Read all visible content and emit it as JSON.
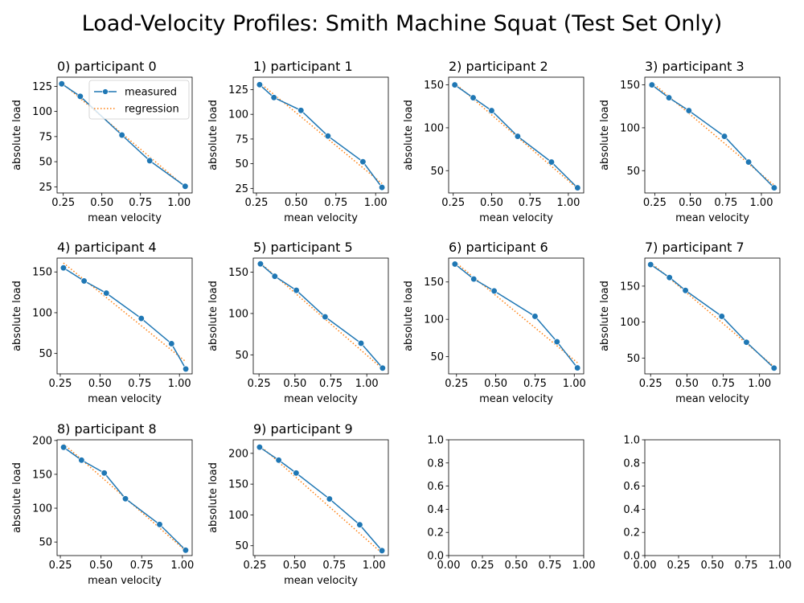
{
  "figure_title": "Load-Velocity Profiles: Smith Machine Squat (Test Set Only)",
  "legend": {
    "measured": "measured",
    "regression": "regression",
    "placement": "upper-right"
  },
  "colors": {
    "measured": "#1f77b4",
    "regression": "#ff7f0e",
    "axis": "#000000"
  },
  "chart_data": [
    {
      "type": "line",
      "title": "0) participant 0",
      "xlabel": "mean velocity",
      "ylabel": "absolute load",
      "grid": false,
      "legend": true,
      "xlim": [
        0.21,
        1.085
      ],
      "ylim": [
        18.9,
        134.1
      ],
      "xticks": [
        0.25,
        0.5,
        0.75,
        1.0
      ],
      "xtick_labels": [
        "0.25",
        "0.50",
        "0.75",
        "1.00"
      ],
      "yticks": [
        25,
        50,
        75,
        100,
        125
      ],
      "ytick_labels": [
        "25",
        "50",
        "75",
        "100",
        "125"
      ],
      "series": [
        {
          "name": "measured",
          "x": [
            0.24,
            0.36,
            0.63,
            0.81,
            1.04
          ],
          "y": [
            127.5,
            115,
            76.5,
            51,
            25.5
          ]
        },
        {
          "name": "regression",
          "x": [
            0.24,
            1.04
          ],
          "y": [
            128.5,
            25
          ]
        }
      ]
    },
    {
      "type": "line",
      "title": "1) participant 1",
      "xlabel": "mean velocity",
      "ylabel": "absolute load",
      "grid": false,
      "legend": false,
      "xlim": [
        0.23,
        1.08
      ],
      "ylim": [
        20.4,
        137.6
      ],
      "xticks": [
        0.25,
        0.5,
        0.75,
        1.0
      ],
      "xtick_labels": [
        "0.25",
        "0.50",
        "0.75",
        "1.00"
      ],
      "yticks": [
        25,
        50,
        75,
        100,
        125
      ],
      "ytick_labels": [
        "25",
        "50",
        "75",
        "100",
        "125"
      ],
      "series": [
        {
          "name": "measured",
          "x": [
            0.27,
            0.36,
            0.53,
            0.7,
            0.92,
            1.04
          ],
          "y": [
            130,
            117,
            104,
            78,
            52,
            26
          ]
        },
        {
          "name": "regression",
          "x": [
            0.27,
            1.04
          ],
          "y": [
            132,
            30
          ]
        }
      ]
    },
    {
      "type": "line",
      "title": "2) participant 2",
      "xlabel": "mean velocity",
      "ylabel": "absolute load",
      "grid": false,
      "legend": false,
      "xlim": [
        0.22,
        1.1
      ],
      "ylim": [
        24,
        159
      ],
      "xticks": [
        0.25,
        0.5,
        0.75,
        1.0
      ],
      "xtick_labels": [
        "0.25",
        "0.50",
        "0.75",
        "1.00"
      ],
      "yticks": [
        50,
        100,
        150
      ],
      "ytick_labels": [
        "50",
        "100",
        "150"
      ],
      "series": [
        {
          "name": "measured",
          "x": [
            0.26,
            0.38,
            0.5,
            0.67,
            0.89,
            1.06
          ],
          "y": [
            150,
            135,
            120,
            90,
            60,
            30
          ]
        },
        {
          "name": "regression",
          "x": [
            0.26,
            1.06
          ],
          "y": [
            152,
            29
          ]
        }
      ]
    },
    {
      "type": "line",
      "title": "3) participant 3",
      "xlabel": "mean velocity",
      "ylabel": "absolute load",
      "grid": false,
      "legend": false,
      "xlim": [
        0.18,
        1.13
      ],
      "ylim": [
        24,
        159
      ],
      "xticks": [
        0.25,
        0.5,
        0.75,
        1.0
      ],
      "xtick_labels": [
        "0.25",
        "0.50",
        "0.75",
        "1.00"
      ],
      "yticks": [
        50,
        100,
        150
      ],
      "ytick_labels": [
        "50",
        "100",
        "150"
      ],
      "series": [
        {
          "name": "measured",
          "x": [
            0.23,
            0.35,
            0.49,
            0.74,
            0.91,
            1.09
          ],
          "y": [
            150,
            135,
            120,
            90,
            60,
            30
          ]
        },
        {
          "name": "regression",
          "x": [
            0.23,
            1.09
          ],
          "y": [
            153,
            33
          ]
        }
      ]
    },
    {
      "type": "line",
      "title": "4) participant 4",
      "xlabel": "mean velocity",
      "ylabel": "absolute load",
      "grid": false,
      "legend": false,
      "xlim": [
        0.23,
        1.08
      ],
      "ylim": [
        25,
        167
      ],
      "xticks": [
        0.25,
        0.5,
        0.75,
        1.0
      ],
      "xtick_labels": [
        "0.25",
        "0.50",
        "0.75",
        "1.00"
      ],
      "yticks": [
        50,
        100,
        150
      ],
      "ytick_labels": [
        "50",
        "100",
        "150"
      ],
      "series": [
        {
          "name": "measured",
          "x": [
            0.27,
            0.4,
            0.54,
            0.76,
            0.95,
            1.04
          ],
          "y": [
            155,
            139,
            124,
            93,
            62,
            31
          ]
        },
        {
          "name": "regression",
          "x": [
            0.27,
            1.04
          ],
          "y": [
            161,
            40
          ]
        }
      ]
    },
    {
      "type": "line",
      "title": "5) participant 5",
      "xlabel": "mean velocity",
      "ylabel": "absolute load",
      "grid": false,
      "legend": false,
      "xlim": [
        0.21,
        1.15
      ],
      "ylim": [
        27,
        167
      ],
      "xticks": [
        0.25,
        0.5,
        0.75,
        1.0
      ],
      "xtick_labels": [
        "0.25",
        "0.50",
        "0.75",
        "1.00"
      ],
      "yticks": [
        50,
        100,
        150
      ],
      "ytick_labels": [
        "50",
        "100",
        "150"
      ],
      "series": [
        {
          "name": "measured",
          "x": [
            0.26,
            0.36,
            0.51,
            0.71,
            0.96,
            1.11
          ],
          "y": [
            160,
            145,
            128,
            96,
            64,
            34
          ]
        },
        {
          "name": "regression",
          "x": [
            0.26,
            1.11
          ],
          "y": [
            161,
            33
          ]
        }
      ]
    },
    {
      "type": "line",
      "title": "6) participant 6",
      "xlabel": "mean velocity",
      "ylabel": "absolute load",
      "grid": false,
      "legend": false,
      "xlim": [
        0.2,
        1.06
      ],
      "ylim": [
        27,
        182
      ],
      "xticks": [
        0.25,
        0.5,
        0.75,
        1.0
      ],
      "xtick_labels": [
        "0.25",
        "0.50",
        "0.75",
        "1.00"
      ],
      "yticks": [
        50,
        100,
        150
      ],
      "ytick_labels": [
        "50",
        "100",
        "150"
      ],
      "series": [
        {
          "name": "measured",
          "x": [
            0.24,
            0.36,
            0.49,
            0.75,
            0.89,
            1.02
          ],
          "y": [
            174,
            154,
            138,
            104,
            70,
            35
          ]
        },
        {
          "name": "regression",
          "x": [
            0.24,
            1.02
          ],
          "y": [
            177,
            42
          ]
        }
      ]
    },
    {
      "type": "line",
      "title": "7) participant 7",
      "xlabel": "mean velocity",
      "ylabel": "absolute load",
      "grid": false,
      "legend": false,
      "xlim": [
        0.21,
        1.14
      ],
      "ylim": [
        28,
        189
      ],
      "xticks": [
        0.25,
        0.5,
        0.75,
        1.0
      ],
      "xtick_labels": [
        "0.25",
        "0.50",
        "0.75",
        "1.00"
      ],
      "yticks": [
        50,
        100,
        150
      ],
      "ytick_labels": [
        "50",
        "100",
        "150"
      ],
      "series": [
        {
          "name": "measured",
          "x": [
            0.25,
            0.38,
            0.49,
            0.74,
            0.91,
            1.1
          ],
          "y": [
            180,
            162,
            144,
            108,
            72,
            36
          ]
        },
        {
          "name": "regression",
          "x": [
            0.25,
            1.1
          ],
          "y": [
            183,
            38
          ]
        }
      ]
    },
    {
      "type": "line",
      "title": "8) participant 8",
      "xlabel": "mean velocity",
      "ylabel": "absolute load",
      "grid": false,
      "legend": false,
      "xlim": [
        0.23,
        1.06
      ],
      "ylim": [
        30,
        201
      ],
      "xticks": [
        0.25,
        0.5,
        0.75,
        1.0
      ],
      "xtick_labels": [
        "0.25",
        "0.50",
        "0.75",
        "1.00"
      ],
      "yticks": [
        50,
        100,
        150,
        200
      ],
      "ytick_labels": [
        "50",
        "100",
        "150",
        "200"
      ],
      "series": [
        {
          "name": "measured",
          "x": [
            0.27,
            0.38,
            0.52,
            0.65,
            0.86,
            1.02
          ],
          "y": [
            190,
            171,
            152,
            114,
            76,
            38
          ]
        },
        {
          "name": "regression",
          "x": [
            0.27,
            1.02
          ],
          "y": [
            195,
            37
          ]
        }
      ]
    },
    {
      "type": "line",
      "title": "9) participant 9",
      "xlabel": "mean velocity",
      "ylabel": "absolute load",
      "grid": false,
      "legend": false,
      "xlim": [
        0.24,
        1.09
      ],
      "ylim": [
        34,
        222
      ],
      "xticks": [
        0.25,
        0.5,
        0.75,
        1.0
      ],
      "xtick_labels": [
        "0.25",
        "0.50",
        "0.75",
        "1.00"
      ],
      "yticks": [
        50,
        100,
        150,
        200
      ],
      "ytick_labels": [
        "50",
        "100",
        "150",
        "200"
      ],
      "series": [
        {
          "name": "measured",
          "x": [
            0.28,
            0.4,
            0.51,
            0.72,
            0.91,
            1.05
          ],
          "y": [
            210,
            189,
            168,
            126,
            84,
            42
          ]
        },
        {
          "name": "regression",
          "x": [
            0.28,
            1.05
          ],
          "y": [
            213,
            38
          ]
        }
      ]
    },
    {
      "type": "empty",
      "title": "",
      "xlabel": "",
      "ylabel": "",
      "grid": false,
      "legend": false,
      "xlim": [
        0,
        1
      ],
      "ylim": [
        0,
        1
      ],
      "xticks": [
        0,
        0.25,
        0.5,
        0.75,
        1.0
      ],
      "xtick_labels": [
        "0.00",
        "0.25",
        "0.50",
        "0.75",
        "1.00"
      ],
      "yticks": [
        0,
        0.2,
        0.4,
        0.6,
        0.8,
        1.0
      ],
      "ytick_labels": [
        "0.0",
        "0.2",
        "0.4",
        "0.6",
        "0.8",
        "1.0"
      ],
      "series": []
    },
    {
      "type": "empty",
      "title": "",
      "xlabel": "",
      "ylabel": "",
      "grid": false,
      "legend": false,
      "xlim": [
        0,
        1
      ],
      "ylim": [
        0,
        1
      ],
      "xticks": [
        0,
        0.25,
        0.5,
        0.75,
        1.0
      ],
      "xtick_labels": [
        "0.00",
        "0.25",
        "0.50",
        "0.75",
        "1.00"
      ],
      "yticks": [
        0,
        0.2,
        0.4,
        0.6,
        0.8,
        1.0
      ],
      "ytick_labels": [
        "0.0",
        "0.2",
        "0.4",
        "0.6",
        "0.8",
        "1.0"
      ],
      "series": []
    }
  ]
}
